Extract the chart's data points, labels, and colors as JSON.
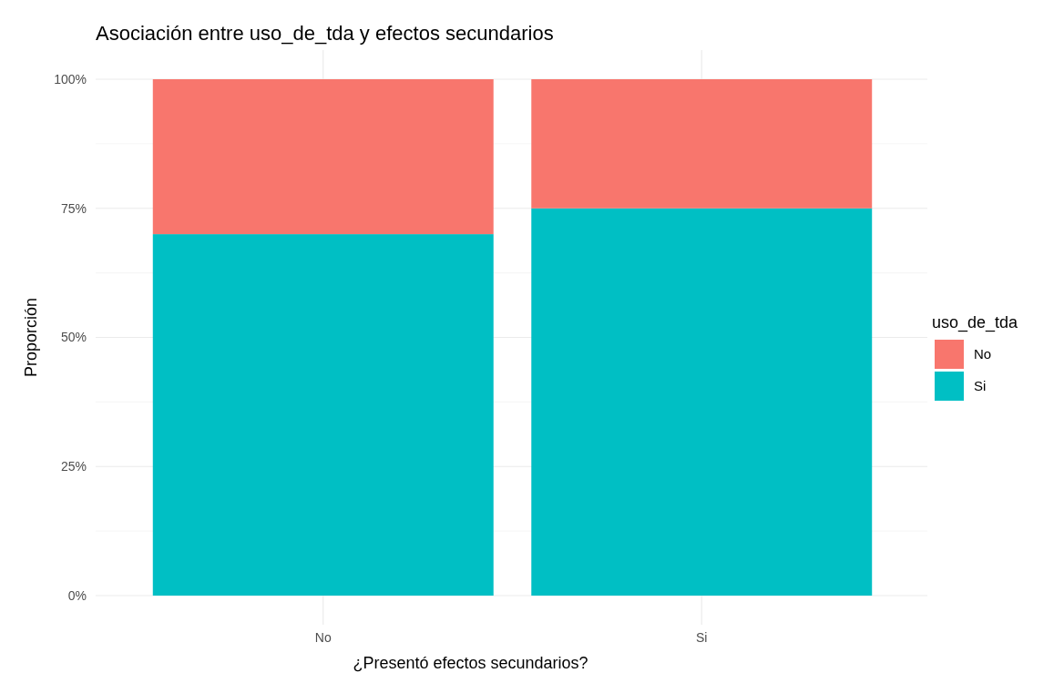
{
  "chart_data": {
    "type": "bar",
    "title": "Asociación entre uso_de_tda y efectos secundarios",
    "xlabel": "¿Presentó efectos secundarios?",
    "ylabel": "Proporción",
    "legend_title": "uso_de_tda",
    "categories": [
      "No",
      "Si"
    ],
    "stacked": true,
    "series": [
      {
        "name": "Si",
        "color": "#00bfc4",
        "values": [
          70,
          75
        ]
      },
      {
        "name": "No",
        "color": "#f8766d",
        "values": [
          30,
          25
        ]
      }
    ],
    "ylim": [
      0,
      100
    ],
    "yticks": [
      {
        "value": 0,
        "label": "0%"
      },
      {
        "value": 25,
        "label": "25%"
      },
      {
        "value": 50,
        "label": "50%"
      },
      {
        "value": 75,
        "label": "75%"
      },
      {
        "value": 100,
        "label": "100%"
      }
    ],
    "grid": true,
    "legend": "right"
  }
}
